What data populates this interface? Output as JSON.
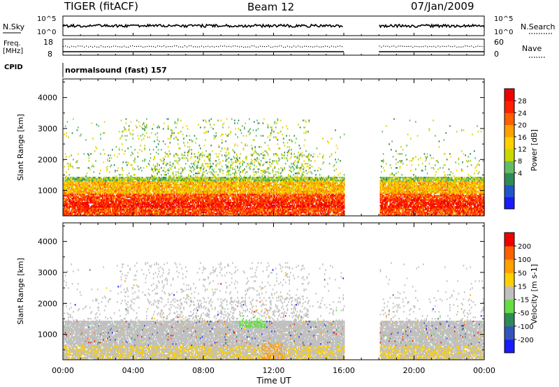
{
  "header": {
    "radar": "TIGER (fitACF)",
    "beam": "Beam 12",
    "date": "07/Jan/2009"
  },
  "top_panels": {
    "nsky_label": "N.Sky",
    "nsearch_label": "N.Search",
    "nsky_ticks": [
      "10^5",
      "10^0"
    ],
    "nsearch_ticks": [
      "10^5",
      "10^0"
    ],
    "freq_label": "Freq.",
    "freq_unit": "[MHz]",
    "freq_ticks": [
      "18",
      "8"
    ],
    "nave_label": "Nave",
    "nave_ticks": [
      "60",
      "0"
    ],
    "cpid_label": "CPID",
    "cpid_value": "normalsound (fast) 157"
  },
  "chart_data": [
    {
      "type": "heatmap",
      "name": "power",
      "ylabel": "Slant Range [km]",
      "yticks": [
        1000,
        2000,
        3000,
        4000
      ],
      "ylim": [
        180,
        4600
      ],
      "xlim": [
        0,
        24
      ],
      "data_gap_hours": [
        16,
        18
      ],
      "colorbar": {
        "label": "Power [dB]",
        "ticks": [
          "28",
          "24",
          "20",
          "16",
          "12",
          "8",
          "4"
        ],
        "colors": [
          "#1a1aff",
          "#2255cc",
          "#2e8b57",
          "#66bb66",
          "#c8d800",
          "#ffd000",
          "#ffa000",
          "#ff6000",
          "#ff2000",
          "#ee0000"
        ]
      }
    },
    {
      "type": "heatmap",
      "name": "velocity",
      "ylabel": "Slant Range [km]",
      "yticks": [
        1000,
        2000,
        3000,
        4000
      ],
      "ylim": [
        180,
        4600
      ],
      "xlim": [
        0,
        24
      ],
      "data_gap_hours": [
        16,
        18
      ],
      "colorbar": {
        "label": "Velocity [m s-1]",
        "ticks": [
          "200",
          "100",
          "50",
          "15",
          "-15",
          "-50",
          "-100",
          "-200"
        ],
        "colors": [
          "#1a1aff",
          "#3355bb",
          "#2e8b57",
          "#66dd44",
          "#c0c0c0",
          "#ffd000",
          "#ffa000",
          "#ff6000",
          "#ee0000"
        ]
      }
    }
  ],
  "x_axis": {
    "label": "Time UT",
    "ticks": [
      "00:00",
      "04:00",
      "08:00",
      "12:00",
      "16:00",
      "20:00",
      "00:00"
    ]
  }
}
